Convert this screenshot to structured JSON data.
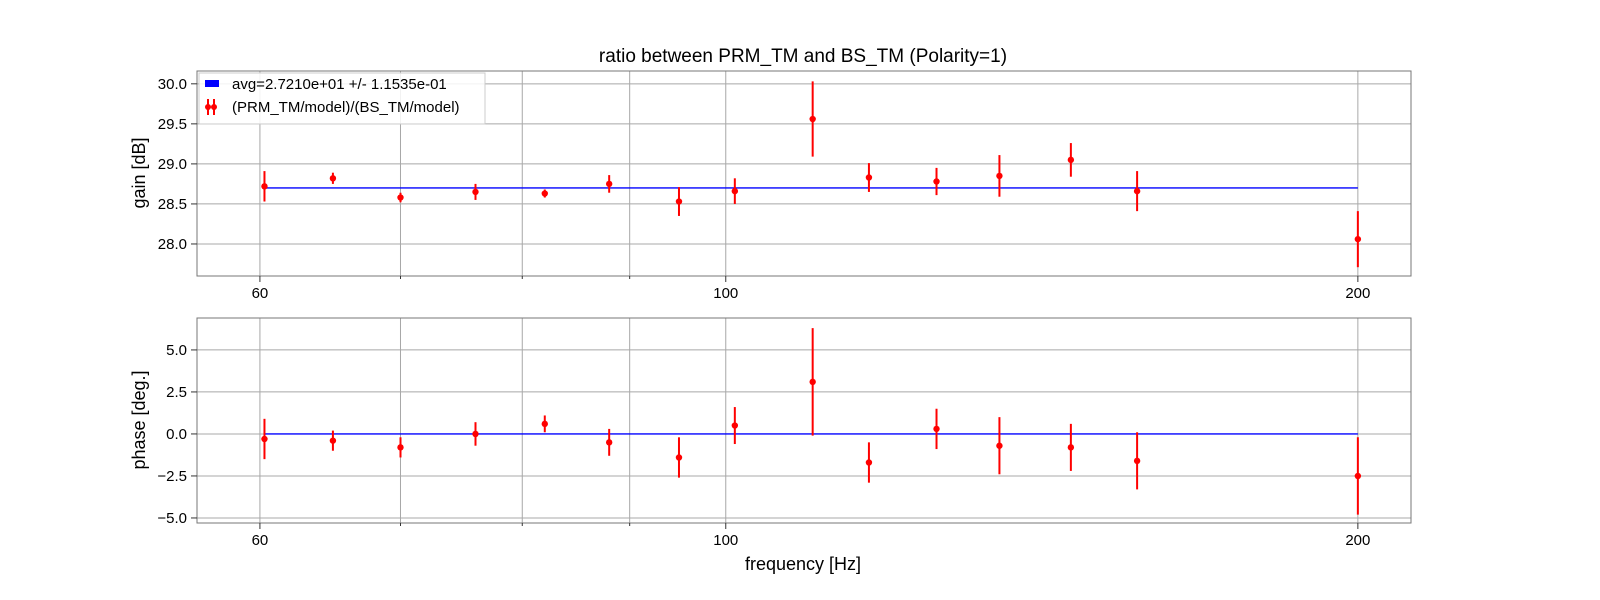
{
  "chart_data": [
    {
      "type": "scatter",
      "title": "ratio between PRM_TM and BS_TM (Polarity=1)",
      "xlabel": "",
      "ylabel": "gain [dB]",
      "xscale": "log",
      "xlim": [
        56,
        212
      ],
      "ylim": [
        27.6,
        30.16
      ],
      "x_ticks": [
        60,
        100,
        200
      ],
      "x_tick_labels": [
        "60",
        "100",
        "200"
      ],
      "y_ticks": [
        28.0,
        28.5,
        29.0,
        29.5,
        30.0
      ],
      "y_tick_labels": [
        "28.0",
        "28.5",
        "29.0",
        "29.5",
        "30.0"
      ],
      "grid": true,
      "legend_position": "top-left",
      "legend": [
        {
          "label": "avg=2.7210e+01 +/- 1.1535e-01",
          "kind": "line",
          "color": "#0000ff"
        },
        {
          "label": "(PRM_TM/model)/(BS_TM/model)",
          "kind": "errorbar",
          "color": "#ff0000"
        }
      ],
      "avg_line": {
        "y": 28.7,
        "x_range": [
          60.3,
          200
        ],
        "color": "#0000ff"
      },
      "series": [
        {
          "name": "(PRM_TM/model)/(BS_TM/model)",
          "color": "#ff0000",
          "x": [
            60.3,
            65.0,
            70.0,
            76.0,
            82.0,
            88.0,
            95.0,
            101.0,
            110.0,
            117.0,
            126.0,
            135.0,
            146.0,
            157.0,
            200.0
          ],
          "y": [
            28.72,
            28.82,
            28.58,
            28.65,
            28.63,
            28.75,
            28.53,
            28.66,
            29.56,
            28.83,
            28.78,
            28.85,
            29.05,
            28.66,
            28.06
          ],
          "err": [
            0.19,
            0.07,
            0.06,
            0.1,
            0.05,
            0.11,
            0.18,
            0.16,
            0.47,
            0.18,
            0.17,
            0.26,
            0.21,
            0.25,
            0.35
          ]
        }
      ]
    },
    {
      "type": "scatter",
      "title": "",
      "xlabel": "frequency [Hz]",
      "ylabel": "phase [deg.]",
      "xscale": "log",
      "xlim": [
        56,
        212
      ],
      "ylim": [
        -5.3,
        6.9
      ],
      "x_ticks": [
        60,
        100,
        200
      ],
      "x_tick_labels": [
        "60",
        "100",
        "200"
      ],
      "y_ticks": [
        -5.0,
        -2.5,
        0.0,
        2.5,
        5.0
      ],
      "y_tick_labels": [
        "−5.0",
        "−2.5",
        "0.0",
        "2.5",
        "5.0"
      ],
      "grid": true,
      "avg_line": {
        "y": 0.0,
        "x_range": [
          60.3,
          200
        ],
        "color": "#0000ff"
      },
      "series": [
        {
          "name": "(PRM_TM/model)/(BS_TM/model)",
          "color": "#ff0000",
          "x": [
            60.3,
            65.0,
            70.0,
            76.0,
            82.0,
            88.0,
            95.0,
            101.0,
            110.0,
            117.0,
            126.0,
            135.0,
            146.0,
            157.0,
            200.0
          ],
          "y": [
            -0.3,
            -0.4,
            -0.8,
            0.0,
            0.6,
            -0.5,
            -1.4,
            0.5,
            3.1,
            -1.7,
            0.3,
            -0.7,
            -0.8,
            -1.6,
            -2.5
          ],
          "err": [
            1.2,
            0.6,
            0.6,
            0.7,
            0.5,
            0.8,
            1.2,
            1.1,
            3.2,
            1.2,
            1.2,
            1.7,
            1.4,
            1.7,
            2.3
          ]
        }
      ]
    }
  ]
}
